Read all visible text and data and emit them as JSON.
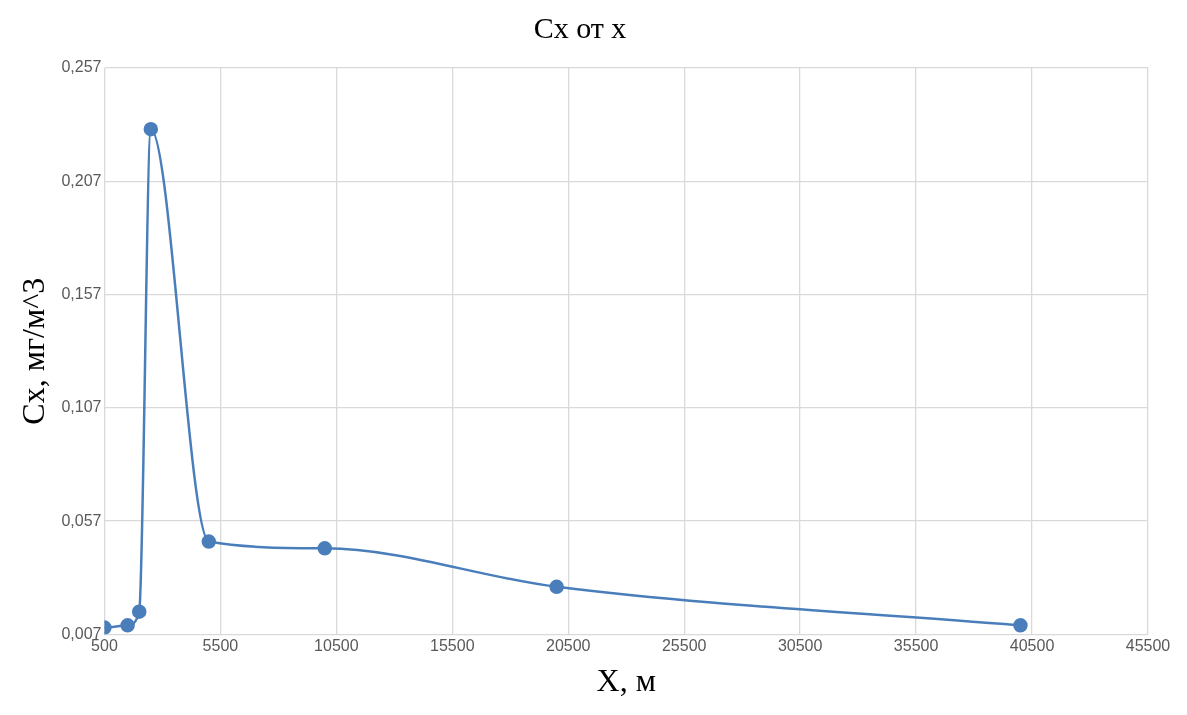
{
  "chart_data": {
    "type": "line",
    "title": "Cx от x",
    "xlabel": "X, м",
    "ylabel": "Cx, мг/м^3",
    "x": [
      500,
      1500,
      2000,
      2500,
      5000,
      10000,
      20000,
      40000
    ],
    "series": [
      {
        "color": "#4a7ebb",
        "values": [
          0.01,
          0.011,
          0.017,
          0.23,
          0.048,
          0.045,
          0.028,
          0.011
        ]
      }
    ],
    "xlim": [
      500,
      45500
    ],
    "xticks": [
      500,
      5500,
      10500,
      15500,
      20500,
      25500,
      30500,
      35500,
      40500,
      45500
    ],
    "ylim": [
      0.007,
      0.257
    ],
    "yticks": [
      {
        "value": 0.007,
        "label": "0,007"
      },
      {
        "value": 0.057,
        "label": "0,057"
      },
      {
        "value": 0.107,
        "label": "0,107"
      },
      {
        "value": 0.157,
        "label": "0,157"
      },
      {
        "value": 0.207,
        "label": "0,207"
      },
      {
        "value": 0.257,
        "label": "0,257"
      }
    ],
    "grid": true,
    "legend": false,
    "marker": "circle",
    "line_style": "solid"
  }
}
